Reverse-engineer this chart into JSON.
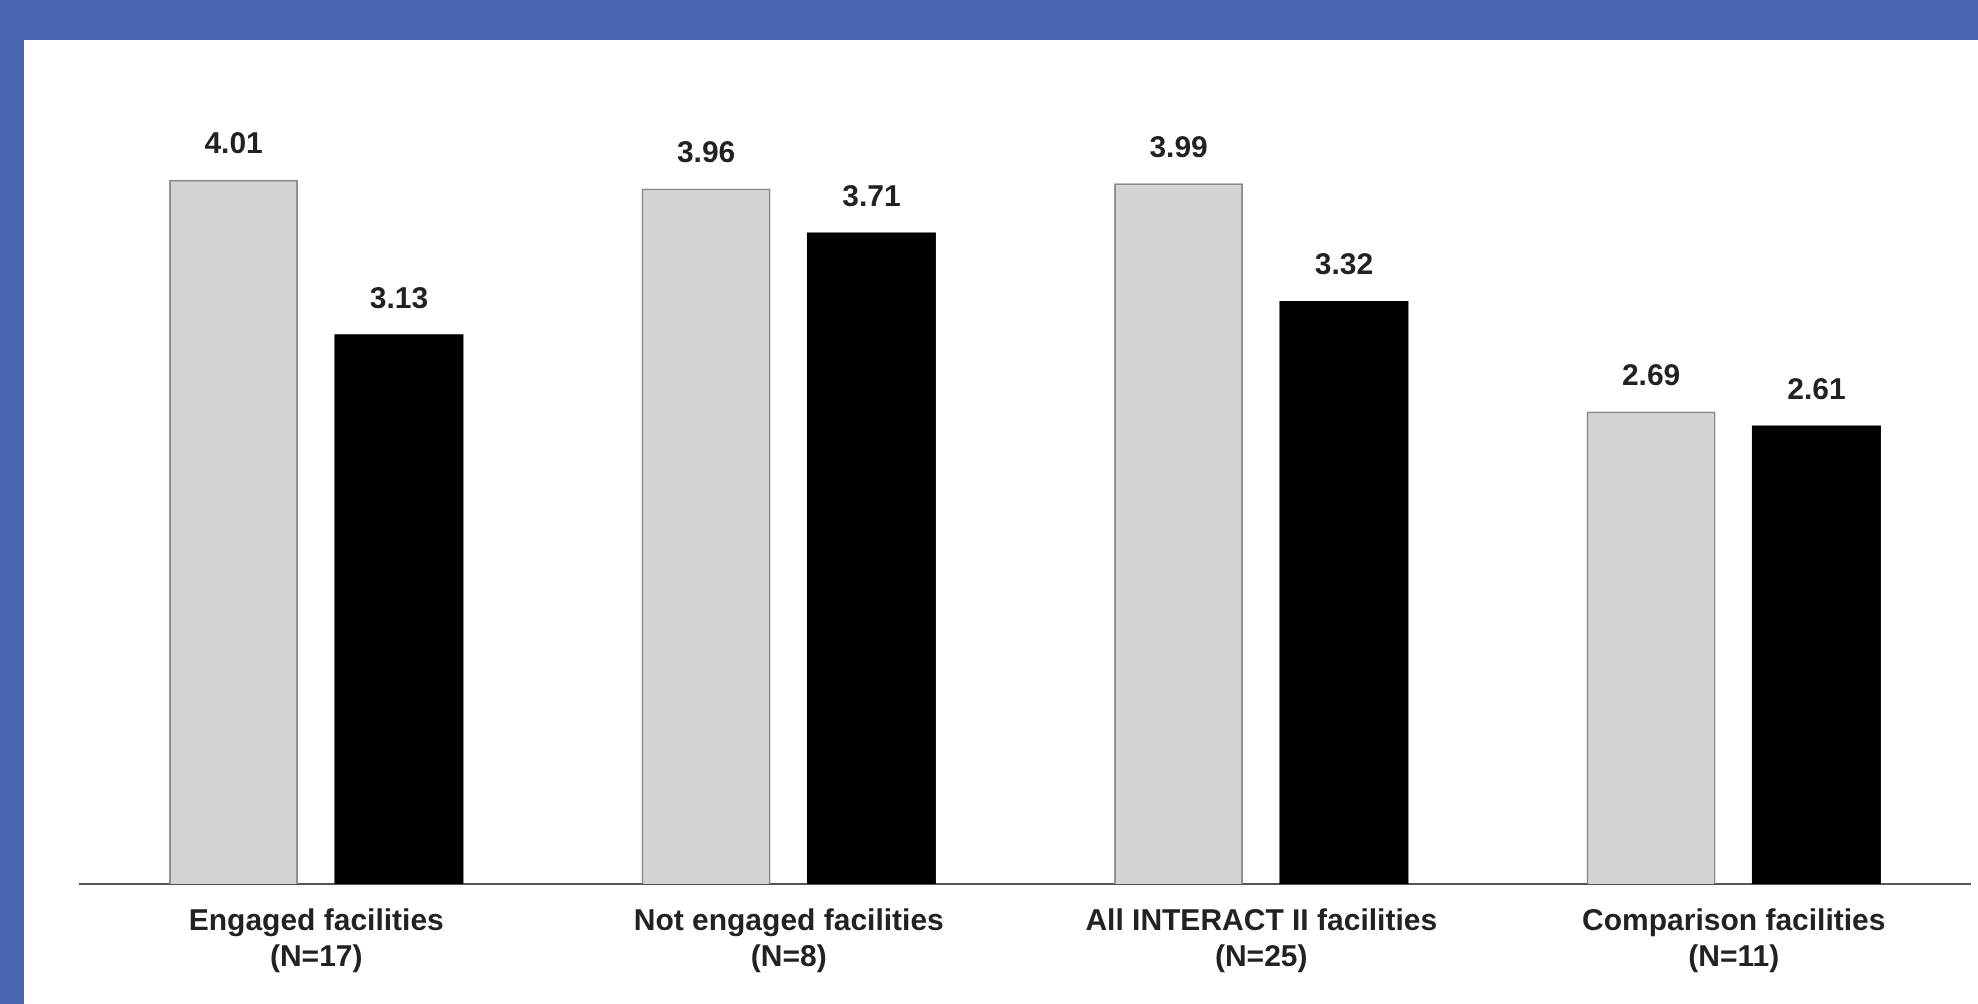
{
  "chart_data": {
    "type": "bar",
    "categories": [
      "Engaged facilities\n(N=17)",
      "Not engaged facilities\n(N=8)",
      "All INTERACT II facilities\n(N=25)",
      "Comparison facilities\n(N=11)"
    ],
    "series": [
      {
        "color": "#d4d4d4",
        "values": [
          4.01,
          3.96,
          3.99,
          2.69
        ]
      },
      {
        "color": "#000000",
        "values": [
          3.13,
          3.71,
          3.32,
          2.61
        ]
      }
    ],
    "data_labels": true,
    "grid": false,
    "legend": false
  }
}
